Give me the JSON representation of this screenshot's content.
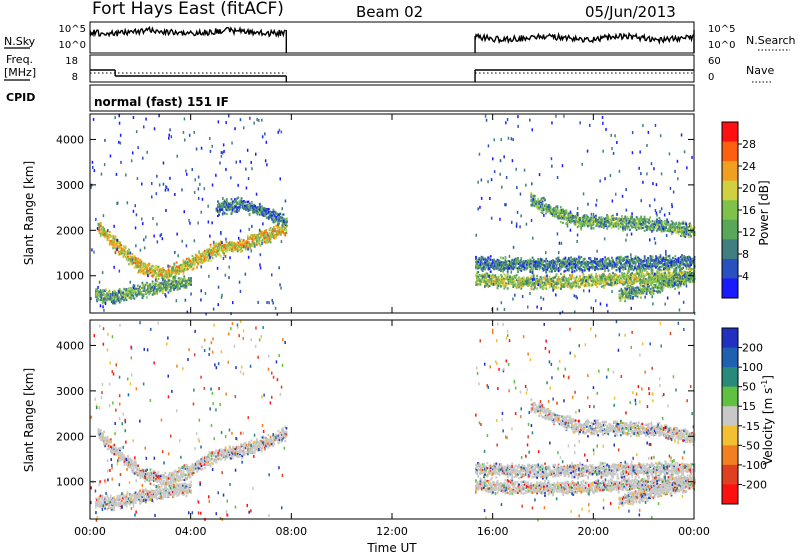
{
  "header": {
    "station": "Fort Hays East (fitACF)",
    "beam": "Beam 02",
    "date": "05/Jun/2013"
  },
  "colors": {
    "power_scale": [
      "#1a1aff",
      "#2a4fbf",
      "#3f7f7f",
      "#59a85a",
      "#7fc24a",
      "#d0d040",
      "#f0a020",
      "#ff6010",
      "#ff1010"
    ],
    "velocity_scale": [
      "#2030c0",
      "#2060b0",
      "#2a8a7a",
      "#60c040",
      "#c8c8c8",
      "#f2c030",
      "#f08020",
      "#e04020",
      "#ff1010"
    ],
    "ground_scatter": "#c8c8c8"
  },
  "chart_data": [
    {
      "type": "line",
      "panel": "noise",
      "left_label": "N.Sky",
      "left_ticks": [
        "10^5",
        "10^0"
      ],
      "right_label": "N.Search",
      "right_ticks": [
        "10^5",
        "10^0"
      ],
      "segments": [
        {
          "x_start": 0.0,
          "x_end": 7.8
        },
        {
          "x_start": 15.3,
          "x_end": 24.0
        }
      ]
    },
    {
      "type": "line",
      "panel": "frequency",
      "left_label": "Freq.",
      "left_unit": "[MHz]",
      "left_ticks": [
        "18",
        "8"
      ],
      "right_label": "Nave",
      "right_ticks": [
        "60",
        "0"
      ],
      "series": [
        {
          "name": "Freq.",
          "x": [
            0.0,
            1.0,
            1.0,
            7.8,
            15.3,
            24.0
          ],
          "y": [
            14,
            14,
            11,
            11,
            14,
            14
          ]
        },
        {
          "name": "Nave",
          "x": [
            0.0,
            7.8,
            15.3,
            24.0
          ],
          "y": [
            10,
            10,
            10,
            10
          ]
        }
      ]
    },
    {
      "type": "text",
      "panel": "cpid",
      "label": "CPID",
      "value": "normal (fast) 151 IF"
    },
    {
      "type": "heatmap",
      "panel": "power",
      "ylabel": "Slant Range [km]",
      "ylim": [
        180,
        4560
      ],
      "yticks": [
        "1000",
        "2000",
        "3000",
        "4000"
      ],
      "xlim": [
        0,
        24
      ],
      "xticks": [
        "00:00",
        "04:00",
        "08:00",
        "12:00",
        "16:00",
        "20:00",
        "00:00"
      ],
      "colorbar": {
        "label": "Power [dB]",
        "ticks": [
          "4",
          "8",
          "12",
          "16",
          "20",
          "24",
          "28"
        ],
        "range": [
          0,
          30
        ]
      },
      "bands": [
        {
          "x": [
            0.3,
            1.0,
            2.0,
            3.0,
            4.0,
            5.0,
            6.0,
            7.0,
            7.8
          ],
          "y": [
            2100,
            1700,
            1200,
            1050,
            1300,
            1600,
            1700,
            1900,
            2100
          ],
          "level": 20
        },
        {
          "x": [
            0.2,
            1.0,
            2.0,
            3.0,
            4.0
          ],
          "y": [
            600,
            550,
            700,
            800,
            900
          ],
          "level": 10
        },
        {
          "x": [
            5.0,
            6.0,
            7.0,
            7.8
          ],
          "y": [
            2500,
            2600,
            2400,
            2200
          ],
          "level": 8
        },
        {
          "x": [
            15.3,
            17.0,
            18.5,
            20.0,
            22.0,
            24.0
          ],
          "y": [
            1300,
            1250,
            1260,
            1280,
            1300,
            1320
          ],
          "level": 8
        },
        {
          "x": [
            15.3,
            16.5,
            18.0,
            19.5,
            21.0,
            22.5,
            24.0
          ],
          "y": [
            950,
            900,
            880,
            900,
            950,
            1000,
            1050
          ],
          "level": 14
        },
        {
          "x": [
            17.5,
            18.5,
            19.5,
            21.0,
            22.5,
            24.0
          ],
          "y": [
            2700,
            2400,
            2200,
            2200,
            2150,
            2000
          ],
          "level": 10
        },
        {
          "x": [
            21.0,
            22.5,
            24.0
          ],
          "y": [
            600,
            800,
            1000
          ],
          "level": 10
        }
      ]
    },
    {
      "type": "heatmap",
      "panel": "velocity",
      "ylabel": "Slant Range [km]",
      "ylim": [
        180,
        4560
      ],
      "yticks": [
        "1000",
        "2000",
        "3000",
        "4000"
      ],
      "xlim": [
        0,
        24
      ],
      "xlabel": "Time UT",
      "xticks": [
        "00:00",
        "04:00",
        "08:00",
        "12:00",
        "16:00",
        "20:00",
        "00:00"
      ],
      "colorbar": {
        "label": "Velocity [m s^-1]",
        "ticks": [
          "200",
          "100",
          "50",
          "15",
          "-15",
          "-50",
          "-100",
          "-200"
        ],
        "range": [
          -250,
          250
        ]
      },
      "bands": [
        {
          "x": [
            0.3,
            1.0,
            2.0,
            3.0,
            4.0,
            5.0,
            6.0,
            7.0,
            7.8
          ],
          "y": [
            2100,
            1700,
            1200,
            1050,
            1300,
            1600,
            1700,
            1900,
            2100
          ],
          "level": 0
        },
        {
          "x": [
            0.2,
            1.0,
            2.0,
            3.0,
            4.0
          ],
          "y": [
            600,
            550,
            700,
            800,
            900
          ],
          "level": 0
        },
        {
          "x": [
            15.3,
            17.0,
            18.5,
            20.0,
            22.0,
            24.0
          ],
          "y": [
            1300,
            1250,
            1260,
            1280,
            1300,
            1320
          ],
          "level": 0
        },
        {
          "x": [
            15.3,
            16.5,
            18.0,
            19.5,
            21.0,
            22.5,
            24.0
          ],
          "y": [
            950,
            900,
            880,
            900,
            950,
            1000,
            1050
          ],
          "level": 0
        },
        {
          "x": [
            17.5,
            18.5,
            19.5,
            21.0,
            22.5,
            24.0
          ],
          "y": [
            2700,
            2400,
            2200,
            2200,
            2150,
            2000
          ],
          "level": 0
        },
        {
          "x": [
            21.0,
            22.5,
            24.0
          ],
          "y": [
            600,
            800,
            1000
          ],
          "level": 0
        }
      ]
    }
  ]
}
